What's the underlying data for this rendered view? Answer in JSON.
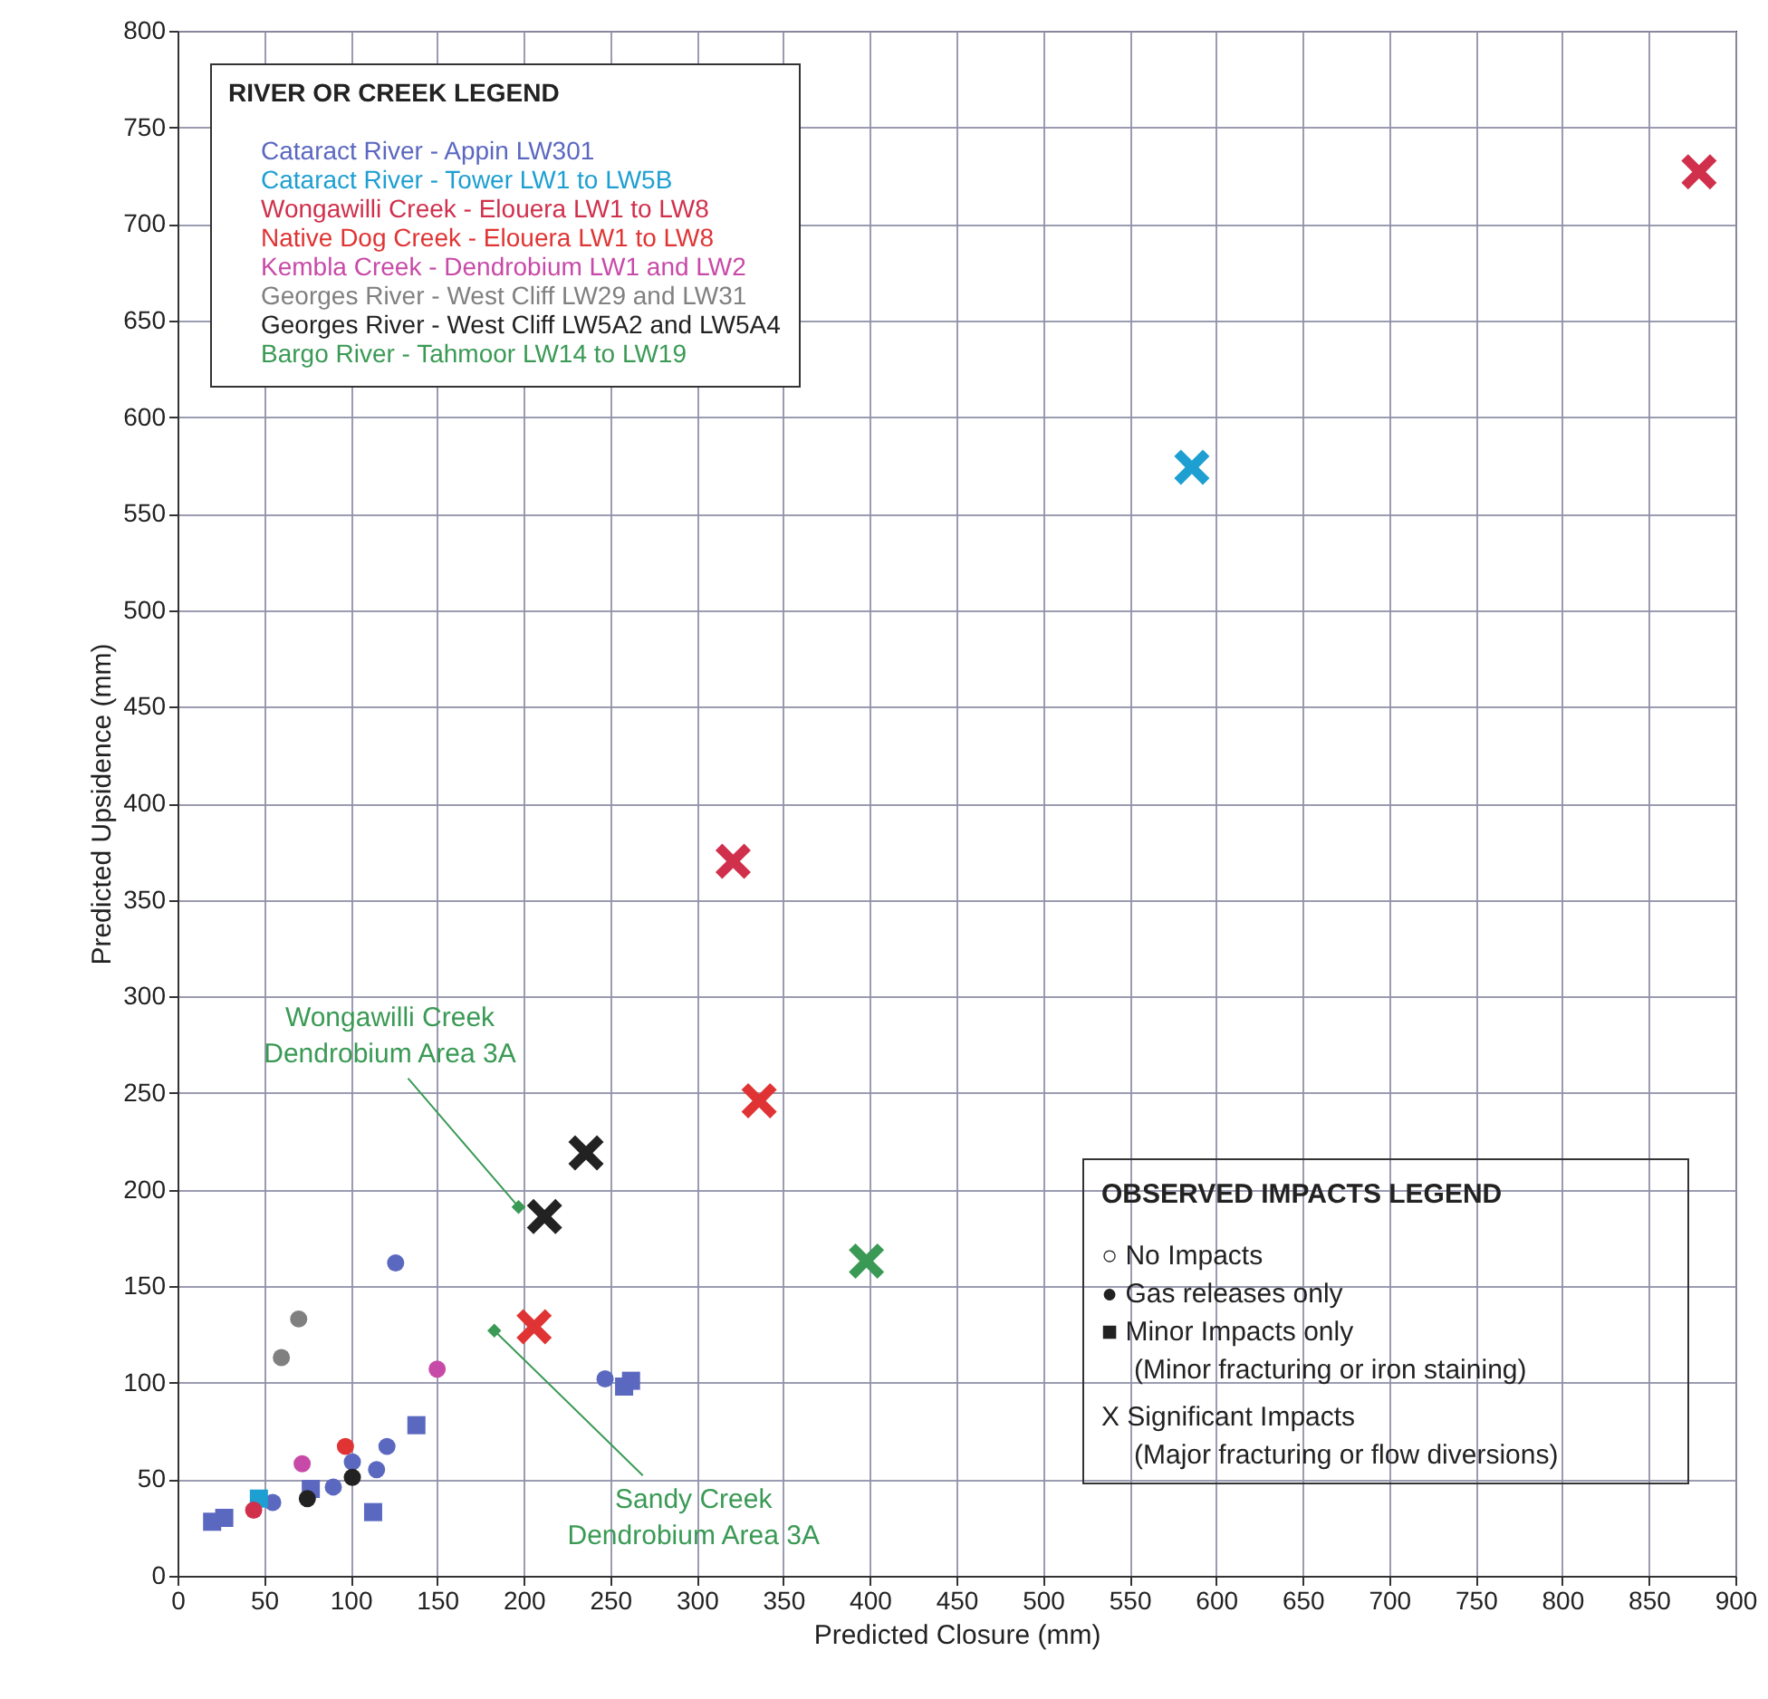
{
  "chart_data": {
    "type": "scatter",
    "xlabel": "Predicted Closure (mm)",
    "ylabel": "Predicted Upsidence (mm)",
    "legend_title": "RIVER OR CREEK LEGEND",
    "xlim": [
      0,
      900
    ],
    "xticks": [
      0,
      50,
      100,
      150,
      200,
      250,
      300,
      350,
      400,
      450,
      500,
      550,
      600,
      650,
      700,
      750,
      800,
      850,
      900
    ],
    "ylim": [
      0,
      800
    ],
    "yticks": [
      0,
      50,
      100,
      150,
      200,
      250,
      300,
      350,
      400,
      450,
      500,
      550,
      600,
      650,
      700,
      750,
      800
    ],
    "grid": true,
    "legend": "top left",
    "annotations": [
      {
        "text": "Wongawilli Creek\nDendrobium Area 3A",
        "x": 197,
        "y": 191
      },
      {
        "text": "Sandy Creek\nDendrobium Area 3A",
        "x": 183,
        "y": 127
      },
      "OBSERVED IMPACTS LEGEND",
      "○  No Impacts",
      "●  Gas releases only",
      "■  Minor Impacts only",
      "    (Minor fracturing or iron staining)",
      "X  Significant Impacts",
      "    (Major fracturing or flow diversions)"
    ],
    "series": [
      {
        "name": "Cataract River - Appin LW301",
        "color": "#5b68c0",
        "marker": "circle",
        "x": [
          126,
          101,
          247
        ],
        "values": [
          162,
          59,
          102
        ]
      },
      {
        "color": "#5b68c0",
        "marker": "circle",
        "x": [
          121,
          115,
          90,
          55
        ],
        "values": [
          67,
          55,
          46,
          38
        ]
      },
      {
        "color": "#5b68c0",
        "marker": "square",
        "x": [
          138,
          113,
          77,
          20,
          27,
          258,
          262
        ],
        "values": [
          78,
          33,
          45,
          28,
          30,
          98,
          101
        ]
      },
      {
        "name": "Cataract River - Tower LW1 to LW5B",
        "color": "#1e9fd2",
        "marker": "square",
        "x": [
          47
        ],
        "values": [
          40
        ]
      },
      {
        "color": "#1e9fd2",
        "marker": "cross",
        "x": [
          586
        ],
        "values": [
          574
        ]
      },
      {
        "name": "Wongawilli Creek - Elouera LW1 to LW8",
        "color": "#d0304c",
        "marker": "circle",
        "x": [
          44
        ],
        "values": [
          34
        ]
      },
      {
        "color": "#d0304c",
        "marker": "cross",
        "x": [
          321,
          879
        ],
        "values": [
          370,
          727
        ]
      },
      {
        "name": "Native Dog Creek - Elouera LW1 to LW8",
        "color": "#e03434",
        "marker": "circle",
        "x": [
          97
        ],
        "values": [
          67
        ]
      },
      {
        "color": "#e03434",
        "marker": "cross",
        "x": [
          336,
          206
        ],
        "values": [
          246,
          129
        ]
      },
      {
        "name": "Kembla Creek - Dendrobium LW1 and LW2",
        "color": "#c84aa8",
        "marker": "circle",
        "x": [
          150,
          72
        ],
        "values": [
          107,
          58
        ]
      },
      {
        "name": "Georges River - West Cliff LW29 and LW31",
        "color": "#808080",
        "marker": "circle",
        "x": [
          70,
          60
        ],
        "values": [
          133,
          113
        ]
      },
      {
        "name": "Georges River - West Cliff LW5A2 and LW5A4",
        "color": "#222222",
        "marker": "circle",
        "x": [
          101
        ],
        "values": [
          51
        ]
      },
      {
        "color": "#222222",
        "marker": "circle",
        "x": [
          75
        ],
        "values": [
          40
        ]
      },
      {
        "color": "#222222",
        "marker": "cross",
        "x": [
          212,
          236
        ],
        "values": [
          186,
          219
        ]
      },
      {
        "name": "Bargo River - Tahmoor LW14 to LW19",
        "color": "#3a9a55",
        "marker": "cross",
        "x": [
          398
        ],
        "values": [
          163
        ]
      },
      {
        "color": "#3a9a55",
        "marker": "diamond",
        "x": [
          197,
          183
        ],
        "values": [
          191,
          127
        ]
      }
    ]
  }
}
